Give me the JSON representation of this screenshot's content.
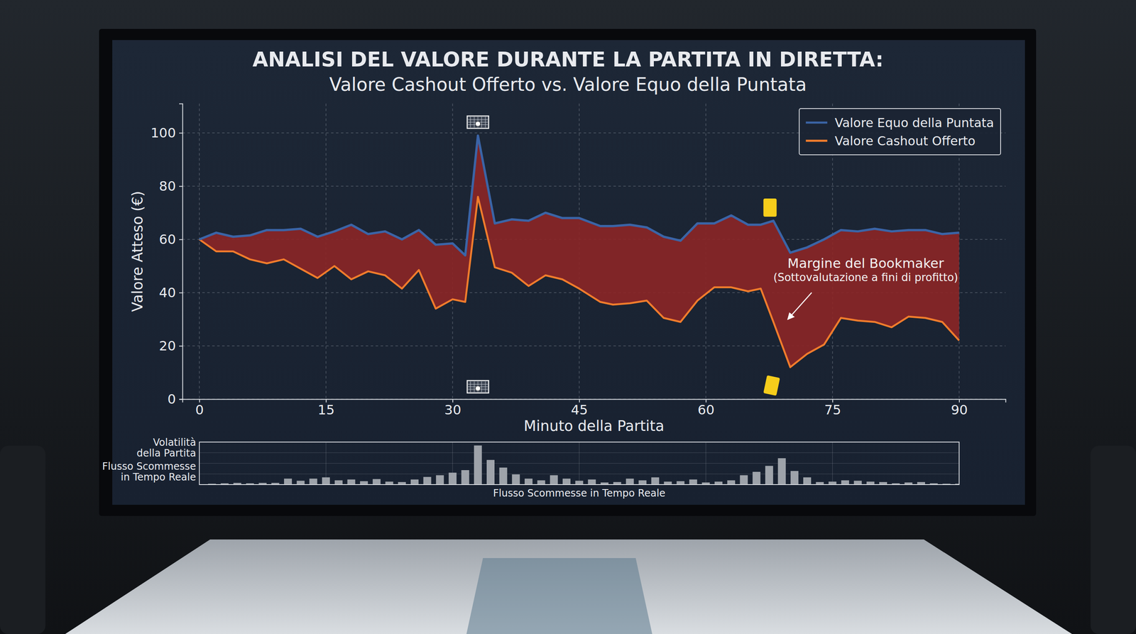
{
  "chart_data": [
    {
      "type": "line",
      "title": "ANALISI DEL VALORE DURANTE LA PARTITA IN DIRETTA:",
      "subtitle": "Valore Cashout Offerto vs. Valore Equo della Puntata",
      "xlabel": "Minuto della Partita",
      "ylabel": "Valore Atteso (€)",
      "x": [
        0,
        2,
        4,
        6,
        8,
        10,
        12,
        14,
        16,
        18,
        20,
        22,
        24,
        26,
        28,
        30,
        31.5,
        33,
        35,
        37,
        39,
        41,
        43,
        45,
        47.5,
        49,
        51,
        53,
        55,
        57,
        59,
        61,
        63,
        65,
        66.5,
        68,
        70,
        72,
        74,
        76,
        78,
        80,
        82,
        84,
        86,
        88,
        90
      ],
      "series": [
        {
          "name": "Valore Equo della Puntata",
          "color": "#3b64a6",
          "values": [
            60,
            62.5,
            61,
            61.5,
            63.5,
            63.5,
            64,
            61,
            63,
            65.5,
            62,
            63,
            60,
            63.5,
            58,
            58.5,
            54,
            99,
            66,
            67.5,
            67,
            70,
            68,
            68,
            65,
            65,
            65.5,
            64.5,
            61,
            59.5,
            66,
            66,
            69,
            65.5,
            65.5,
            67,
            55,
            57,
            60,
            63.5,
            63,
            64,
            63,
            63.5,
            63.5,
            62,
            62.5
          ]
        },
        {
          "name": "Valore Cashout Offerto",
          "color": "#f07c2c",
          "values": [
            60,
            55.5,
            55.5,
            52.5,
            51,
            52.5,
            49,
            45.5,
            50,
            45,
            48,
            46.5,
            41.5,
            48.5,
            34,
            37.5,
            36.5,
            76,
            49.5,
            47.5,
            42.5,
            46.5,
            45,
            41.5,
            36.5,
            35.5,
            36,
            37,
            30.5,
            29,
            37,
            42,
            42,
            40.5,
            41.5,
            29,
            12,
            17,
            20.5,
            30.5,
            29.5,
            29,
            27,
            31,
            30.5,
            29,
            22
          ]
        }
      ],
      "xlim": [
        -2,
        95.5
      ],
      "xticks": [
        0,
        15,
        30,
        45,
        60,
        75,
        90
      ],
      "ylim": [
        0,
        111
      ],
      "yticks": [
        0,
        20,
        40,
        60,
        80,
        100
      ],
      "grid": true,
      "legend": "upper right",
      "annotations": [
        {
          "text": "Margine del Bookmaker",
          "subtext": "(Sottovalutazione a fini di profitto)",
          "x": 69.5,
          "y": 29
        }
      ],
      "events": [
        {
          "x": 33,
          "marker": "goal"
        },
        {
          "x": 67.6,
          "marker": "yellow_card"
        }
      ]
    },
    {
      "type": "bar",
      "xlabel": "Flusso Scommesse in Tempo Reale",
      "ylabel": [
        "Volatilità della Partita",
        "Flusso Scommesse in Tempo Reale"
      ],
      "x": [
        1.5,
        3,
        4.5,
        6,
        7.5,
        9,
        10.5,
        12,
        13.5,
        15,
        16.5,
        18,
        19.5,
        21,
        22.5,
        24,
        25.5,
        27,
        28.5,
        30,
        31.5,
        33,
        34.5,
        36,
        37.5,
        39,
        40.5,
        42,
        43.5,
        45,
        46.5,
        48,
        49.5,
        51,
        52.5,
        54,
        55.5,
        57,
        58.5,
        60,
        61.5,
        63,
        64.5,
        66,
        67.5,
        69,
        70.5,
        72,
        73.5,
        75,
        76.5,
        78,
        79.5,
        81,
        82.5,
        84,
        85.5,
        87,
        88.5,
        90
      ],
      "values": [
        2,
        3,
        4,
        3,
        4,
        4,
        14,
        9,
        14,
        17,
        10,
        12,
        8,
        13,
        7,
        6,
        12,
        18,
        22,
        28,
        34,
        92,
        58,
        40,
        24,
        14,
        10,
        22,
        14,
        9,
        12,
        5,
        6,
        14,
        10,
        17,
        7,
        8,
        12,
        5,
        7,
        10,
        22,
        30,
        44,
        62,
        32,
        17,
        6,
        7,
        10,
        9,
        7,
        6,
        3,
        5,
        6,
        3,
        2,
        2
      ],
      "color": "#9ea3aa",
      "xlim": [
        0,
        90
      ],
      "xticks": [
        0,
        15,
        30,
        45,
        60,
        75,
        90
      ],
      "ylim": [
        0,
        100
      ],
      "yticks": [
        25,
        50,
        75
      ],
      "grid": true,
      "tick_labels": false
    }
  ]
}
